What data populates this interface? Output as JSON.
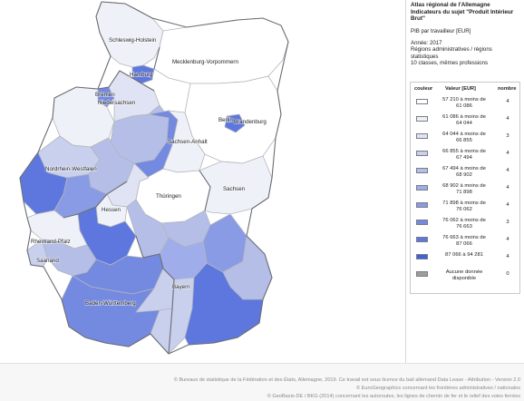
{
  "map": {
    "labels": {
      "schleswig_holstein": "Schleswig-Holstein",
      "hamburg": "Hamburg",
      "mecklenburg": "Mecklenburg-Vorpommern",
      "bremen": "Bremen",
      "niedersachsen": "Niedersachsen",
      "berlin": "Berlin",
      "brandenburg": "Brandenburg",
      "sachsen_anhalt": "Sachsen-Anhalt",
      "nordrhein_westfalen": "Nordrhein-Westfalen",
      "thueringen": "Thüringen",
      "sachsen": "Sachsen",
      "hessen": "Hessen",
      "rheinland_pfalz": "Rheinland-Pfalz",
      "saarland": "Saarland",
      "baden_wuerttemberg": "Baden-Württemberg",
      "bayern": "Bayern"
    },
    "palette": [
      "#ffffff",
      "#eff1f8",
      "#dfe3f3",
      "#c9d0ed",
      "#b4bee7",
      "#9fadea",
      "#8a9be6",
      "#7489e0",
      "#5d77de",
      "#4062d6"
    ],
    "no_data_color": "#9d9d9d",
    "land_class_color": {
      "bayern_mean": "#7489e0",
      "bw_mean": "#7489e0"
    }
  },
  "panel": {
    "title_1": "Atlas régional de l'Allemagne",
    "title_2": "Indicateurs du sujet \"Produit Intérieur",
    "title_3": "Brut\"",
    "indicator": "PIB par travailleur [EUR]",
    "year": "Année: 2017",
    "regions_1": "Régions administratives / régions",
    "regions_2": "statistiques",
    "classes": "10 classes, mêmes professions"
  },
  "legend": {
    "head_color": "couleur",
    "head_value": "Valeur [EUR]",
    "head_count": "nombre",
    "rows": [
      {
        "range_1": "57 210 à moins de",
        "range_2": "61 086",
        "count": "4",
        "color": "#ffffff"
      },
      {
        "range_1": "61 086 à moins de",
        "range_2": "64 044",
        "count": "4",
        "color": "#eff1f8"
      },
      {
        "range_1": "64 044 à moins de",
        "range_2": "66 855",
        "count": "3",
        "color": "#dfe3f3"
      },
      {
        "range_1": "66 855 à moins de",
        "range_2": "67 494",
        "count": "4",
        "color": "#c9d0ed"
      },
      {
        "range_1": "67 494 à moins de",
        "range_2": "68 902",
        "count": "4",
        "color": "#b4bee7"
      },
      {
        "range_1": "68 902 à moins de",
        "range_2": "71 898",
        "count": "4",
        "color": "#9fadea"
      },
      {
        "range_1": "71 898 à moins de",
        "range_2": "76 062",
        "count": "4",
        "color": "#8a9be6"
      },
      {
        "range_1": "76 062 à moins de",
        "range_2": "76 663",
        "count": "3",
        "color": "#7489e0"
      },
      {
        "range_1": "76 663 à moins de",
        "range_2": "87 066",
        "count": "4",
        "color": "#5d77de"
      },
      {
        "range_1": "87 066 à 94 281",
        "range_2": "",
        "count": "4",
        "color": "#4062d6"
      },
      {
        "range_1": "Aucune donnée",
        "range_2": "disponible",
        "count": "0",
        "color": "#9d9d9d"
      }
    ]
  },
  "footer": {
    "line_1": "© Bureaux de statistique de la Fédération et des États, Allemagne, 2019. Ce travail est sous licence du bail allemand Data Lease - Attribution - Version 2.0",
    "line_2": "© EuroGeographics concernant les frontières administratives / nationales",
    "line_3": "© GeoBasis-DE / BKG (2014) concernant les autoroutes, les lignes de chemin de fer et le relief des voies ferrées"
  }
}
